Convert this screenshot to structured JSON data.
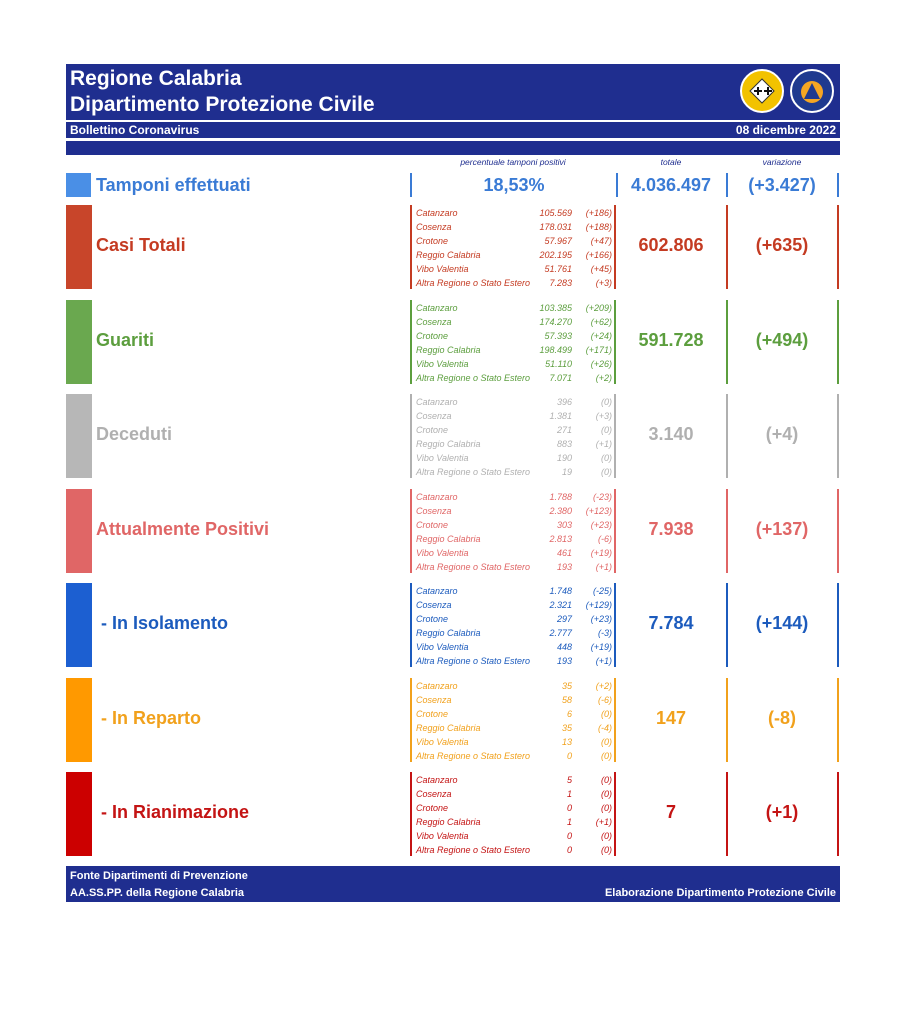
{
  "header": {
    "title1": "Regione Calabria",
    "title2": "Dipartimento Protezione Civile",
    "subtitle": "Bollettino Coronavirus",
    "date": "08 dicembre 2022",
    "logo1": "regione-calabria-logo",
    "logo2": "protezione-civile-logo"
  },
  "columns": {
    "perc": "percentuale tamponi positivi",
    "totale": "totale",
    "variazione": "variazione"
  },
  "tamponi": {
    "label": "Tamponi effettuati",
    "perc": "18,53%",
    "totale": "4.036.497",
    "variazione": "(+3.427)",
    "color": "#3a7bd5"
  },
  "categories": [
    {
      "label": "Casi Totali",
      "color": "#c43b22",
      "bar": "#c8452a",
      "totale": "602.806",
      "variazione": "(+635)",
      "rows": [
        {
          "name": "Catanzaro",
          "value": "105.569",
          "delta": "(+186)"
        },
        {
          "name": "Cosenza",
          "value": "178.031",
          "delta": "(+188)"
        },
        {
          "name": "Crotone",
          "value": "57.967",
          "delta": "(+47)"
        },
        {
          "name": "Reggio Calabria",
          "value": "202.195",
          "delta": "(+166)"
        },
        {
          "name": "Vibo Valentia",
          "value": "51.761",
          "delta": "(+45)"
        },
        {
          "name": "Altra Regione o Stato Estero",
          "value": "7.283",
          "delta": "(+3)"
        }
      ]
    },
    {
      "label": "Guariti",
      "color": "#5c9e3e",
      "bar": "#6aa84f",
      "totale": "591.728",
      "variazione": "(+494)",
      "rows": [
        {
          "name": "Catanzaro",
          "value": "103.385",
          "delta": "(+209)"
        },
        {
          "name": "Cosenza",
          "value": "174.270",
          "delta": "(+62)"
        },
        {
          "name": "Crotone",
          "value": "57.393",
          "delta": "(+24)"
        },
        {
          "name": "Reggio Calabria",
          "value": "198.499",
          "delta": "(+171)"
        },
        {
          "name": "Vibo Valentia",
          "value": "51.110",
          "delta": "(+26)"
        },
        {
          "name": "Altra Regione o Stato Estero",
          "value": "7.071",
          "delta": "(+2)"
        }
      ]
    },
    {
      "label": "Deceduti",
      "color": "#b0b0b0",
      "bar": "#b7b7b7",
      "totale": "3.140",
      "variazione": "(+4)",
      "rows": [
        {
          "name": "Catanzaro",
          "value": "396",
          "delta": "(0)"
        },
        {
          "name": "Cosenza",
          "value": "1.381",
          "delta": "(+3)"
        },
        {
          "name": "Crotone",
          "value": "271",
          "delta": "(0)"
        },
        {
          "name": "Reggio Calabria",
          "value": "883",
          "delta": "(+1)"
        },
        {
          "name": "Vibo Valentia",
          "value": "190",
          "delta": "(0)"
        },
        {
          "name": "Altra Regione o Stato Estero",
          "value": "19",
          "delta": "(0)"
        }
      ]
    },
    {
      "label": "Attualmente Positivi",
      "color": "#e06666",
      "bar": "#e06666",
      "totale": "7.938",
      "variazione": "(+137)",
      "rows": [
        {
          "name": "Catanzaro",
          "value": "1.788",
          "delta": "(-23)"
        },
        {
          "name": "Cosenza",
          "value": "2.380",
          "delta": "(+123)"
        },
        {
          "name": "Crotone",
          "value": "303",
          "delta": "(+23)"
        },
        {
          "name": "Reggio Calabria",
          "value": "2.813",
          "delta": "(-6)"
        },
        {
          "name": "Vibo Valentia",
          "value": "461",
          "delta": "(+19)"
        },
        {
          "name": "Altra Regione o Stato Estero",
          "value": "193",
          "delta": "(+1)"
        }
      ]
    },
    {
      "label": " - In Isolamento",
      "color": "#1c5bbd",
      "bar": "#1c5fd1",
      "totale": "7.784",
      "variazione": "(+144)",
      "rows": [
        {
          "name": "Catanzaro",
          "value": "1.748",
          "delta": "(-25)"
        },
        {
          "name": "Cosenza",
          "value": "2.321",
          "delta": "(+129)"
        },
        {
          "name": "Crotone",
          "value": "297",
          "delta": "(+23)"
        },
        {
          "name": "Reggio Calabria",
          "value": "2.777",
          "delta": "(-3)"
        },
        {
          "name": "Vibo Valentia",
          "value": "448",
          "delta": "(+19)"
        },
        {
          "name": "Altra Regione o Stato Estero",
          "value": "193",
          "delta": "(+1)"
        }
      ]
    },
    {
      "label": " - In Reparto",
      "color": "#f1a11c",
      "bar": "#ff9900",
      "totale": "147",
      "variazione": "(-8)",
      "rows": [
        {
          "name": "Catanzaro",
          "value": "35",
          "delta": "(+2)"
        },
        {
          "name": "Cosenza",
          "value": "58",
          "delta": "(-6)"
        },
        {
          "name": "Crotone",
          "value": "6",
          "delta": "(0)"
        },
        {
          "name": "Reggio Calabria",
          "value": "35",
          "delta": "(-4)"
        },
        {
          "name": "Vibo Valentia",
          "value": "13",
          "delta": "(0)"
        },
        {
          "name": "Altra Regione o Stato Estero",
          "value": "0",
          "delta": "(0)"
        }
      ]
    },
    {
      "label": " - In Rianimazione",
      "color": "#c41414",
      "bar": "#cc0000",
      "totale": "7",
      "variazione": "(+1)",
      "rows": [
        {
          "name": "Catanzaro",
          "value": "5",
          "delta": "(0)"
        },
        {
          "name": "Cosenza",
          "value": "1",
          "delta": "(0)"
        },
        {
          "name": "Crotone",
          "value": "0",
          "delta": "(0)"
        },
        {
          "name": "Reggio Calabria",
          "value": "1",
          "delta": "(+1)"
        },
        {
          "name": "Vibo Valentia",
          "value": "0",
          "delta": "(0)"
        },
        {
          "name": "Altra Regione o Stato Estero",
          "value": "0",
          "delta": "(0)"
        }
      ]
    }
  ],
  "footer": {
    "line1": "Fonte Dipartimenti di Prevenzione",
    "line2": "AA.SS.PP.  della Regione Calabria",
    "right": "Elaborazione Dipartimento Protezione Civile"
  }
}
